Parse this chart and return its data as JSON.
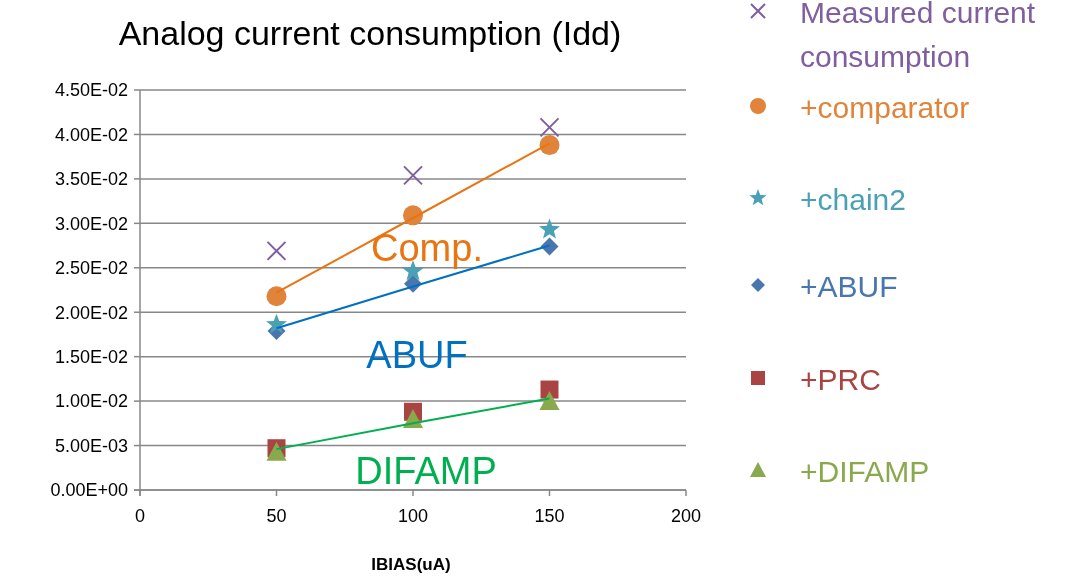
{
  "chart_data": {
    "type": "scatter",
    "title": "Analog current consumption (Idd)",
    "xlabel": "IBIAS(uA)",
    "xlim": [
      0,
      200
    ],
    "xticks": [
      0,
      50,
      100,
      150,
      200
    ],
    "ylim": [
      0,
      0.045
    ],
    "yticks": [
      {
        "value": 0,
        "label": "0.00E+00"
      },
      {
        "value": 0.005,
        "label": "5.00E-03"
      },
      {
        "value": 0.01,
        "label": "1.00E-02"
      },
      {
        "value": 0.015,
        "label": "1.50E-02"
      },
      {
        "value": 0.02,
        "label": "2.00E-02"
      },
      {
        "value": 0.025,
        "label": "2.50E-02"
      },
      {
        "value": 0.03,
        "label": "3.00E-02"
      },
      {
        "value": 0.035,
        "label": "3.50E-02"
      },
      {
        "value": 0.04,
        "label": "4.00E-02"
      },
      {
        "value": 0.045,
        "label": "4.50E-02"
      }
    ],
    "grid": "y",
    "legend": "right",
    "x": [
      50,
      100,
      150
    ],
    "series": [
      {
        "name": "Measured current consumption",
        "color": "#7f5f9f",
        "marker": "cross",
        "values": [
          0.0269,
          0.0354,
          0.0408
        ]
      },
      {
        "name": "+comparator",
        "color": "#e0843c",
        "marker": "circle",
        "values": [
          0.0218,
          0.0309,
          0.0388
        ]
      },
      {
        "name": "+chain2",
        "color": "#4aa0b5",
        "marker": "star",
        "values": [
          0.0186,
          0.0246,
          0.0293
        ]
      },
      {
        "name": "+ABUF",
        "color": "#4a76b0",
        "marker": "diamond",
        "values": [
          0.0179,
          0.0232,
          0.0274
        ]
      },
      {
        "name": "+PRC",
        "color": "#a94442",
        "marker": "square",
        "values": [
          0.0047,
          0.0088,
          0.0113
        ]
      },
      {
        "name": "+DIFAMP",
        "color": "#8aa84c",
        "marker": "triangle",
        "values": [
          0.0043,
          0.008,
          0.01
        ]
      },
      {
        "type": "line",
        "color": "#e87511",
        "values": [
          0.0222,
          0.0306,
          0.039
        ]
      },
      {
        "type": "line",
        "color": "#0070c0",
        "values": [
          0.0182,
          0.0229,
          0.0275
        ]
      },
      {
        "type": "line",
        "color": "#00b050",
        "values": [
          0.0046,
          0.0075,
          0.0103
        ]
      }
    ],
    "annotations": [
      "Comp.",
      "ABUF",
      "DIFAMP"
    ]
  }
}
